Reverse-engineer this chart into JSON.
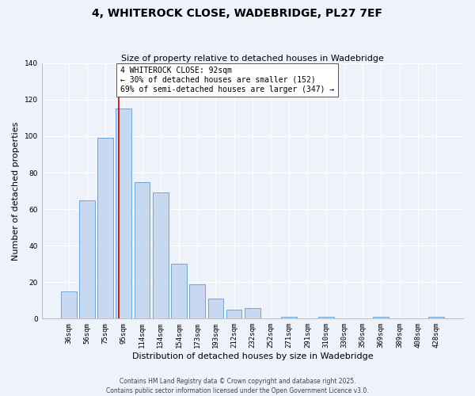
{
  "title": "4, WHITEROCK CLOSE, WADEBRIDGE, PL27 7EF",
  "subtitle": "Size of property relative to detached houses in Wadebridge",
  "xlabel": "Distribution of detached houses by size in Wadebridge",
  "ylabel": "Number of detached properties",
  "bar_labels": [
    "36sqm",
    "56sqm",
    "75sqm",
    "95sqm",
    "114sqm",
    "134sqm",
    "154sqm",
    "173sqm",
    "193sqm",
    "212sqm",
    "232sqm",
    "252sqm",
    "271sqm",
    "291sqm",
    "310sqm",
    "330sqm",
    "350sqm",
    "369sqm",
    "389sqm",
    "408sqm",
    "428sqm"
  ],
  "bar_values": [
    15,
    65,
    99,
    115,
    75,
    69,
    30,
    19,
    11,
    5,
    6,
    0,
    1,
    0,
    1,
    0,
    0,
    1,
    0,
    0,
    1
  ],
  "bar_color": "#c6d9f0",
  "bar_edge_color": "#5b9bd5",
  "vline_x": 2.72,
  "vline_color": "#cc0000",
  "annotation_title": "4 WHITEROCK CLOSE: 92sqm",
  "annotation_line1": "← 30% of detached houses are smaller (152)",
  "annotation_line2": "69% of semi-detached houses are larger (347) →",
  "annotation_box_color": "#ffffff",
  "annotation_box_edge": "#555555",
  "ylim": [
    0,
    140
  ],
  "yticks": [
    0,
    20,
    40,
    60,
    80,
    100,
    120,
    140
  ],
  "background_color": "#eef2fb",
  "grid_color": "#ffffff",
  "footer_line1": "Contains HM Land Registry data © Crown copyright and database right 2025.",
  "footer_line2": "Contains public sector information licensed under the Open Government Licence v3.0.",
  "title_fontsize": 10,
  "subtitle_fontsize": 8,
  "ylabel_fontsize": 8,
  "xlabel_fontsize": 8,
  "annotation_fontsize": 7,
  "tick_fontsize": 6.5,
  "footer_fontsize": 5.5
}
